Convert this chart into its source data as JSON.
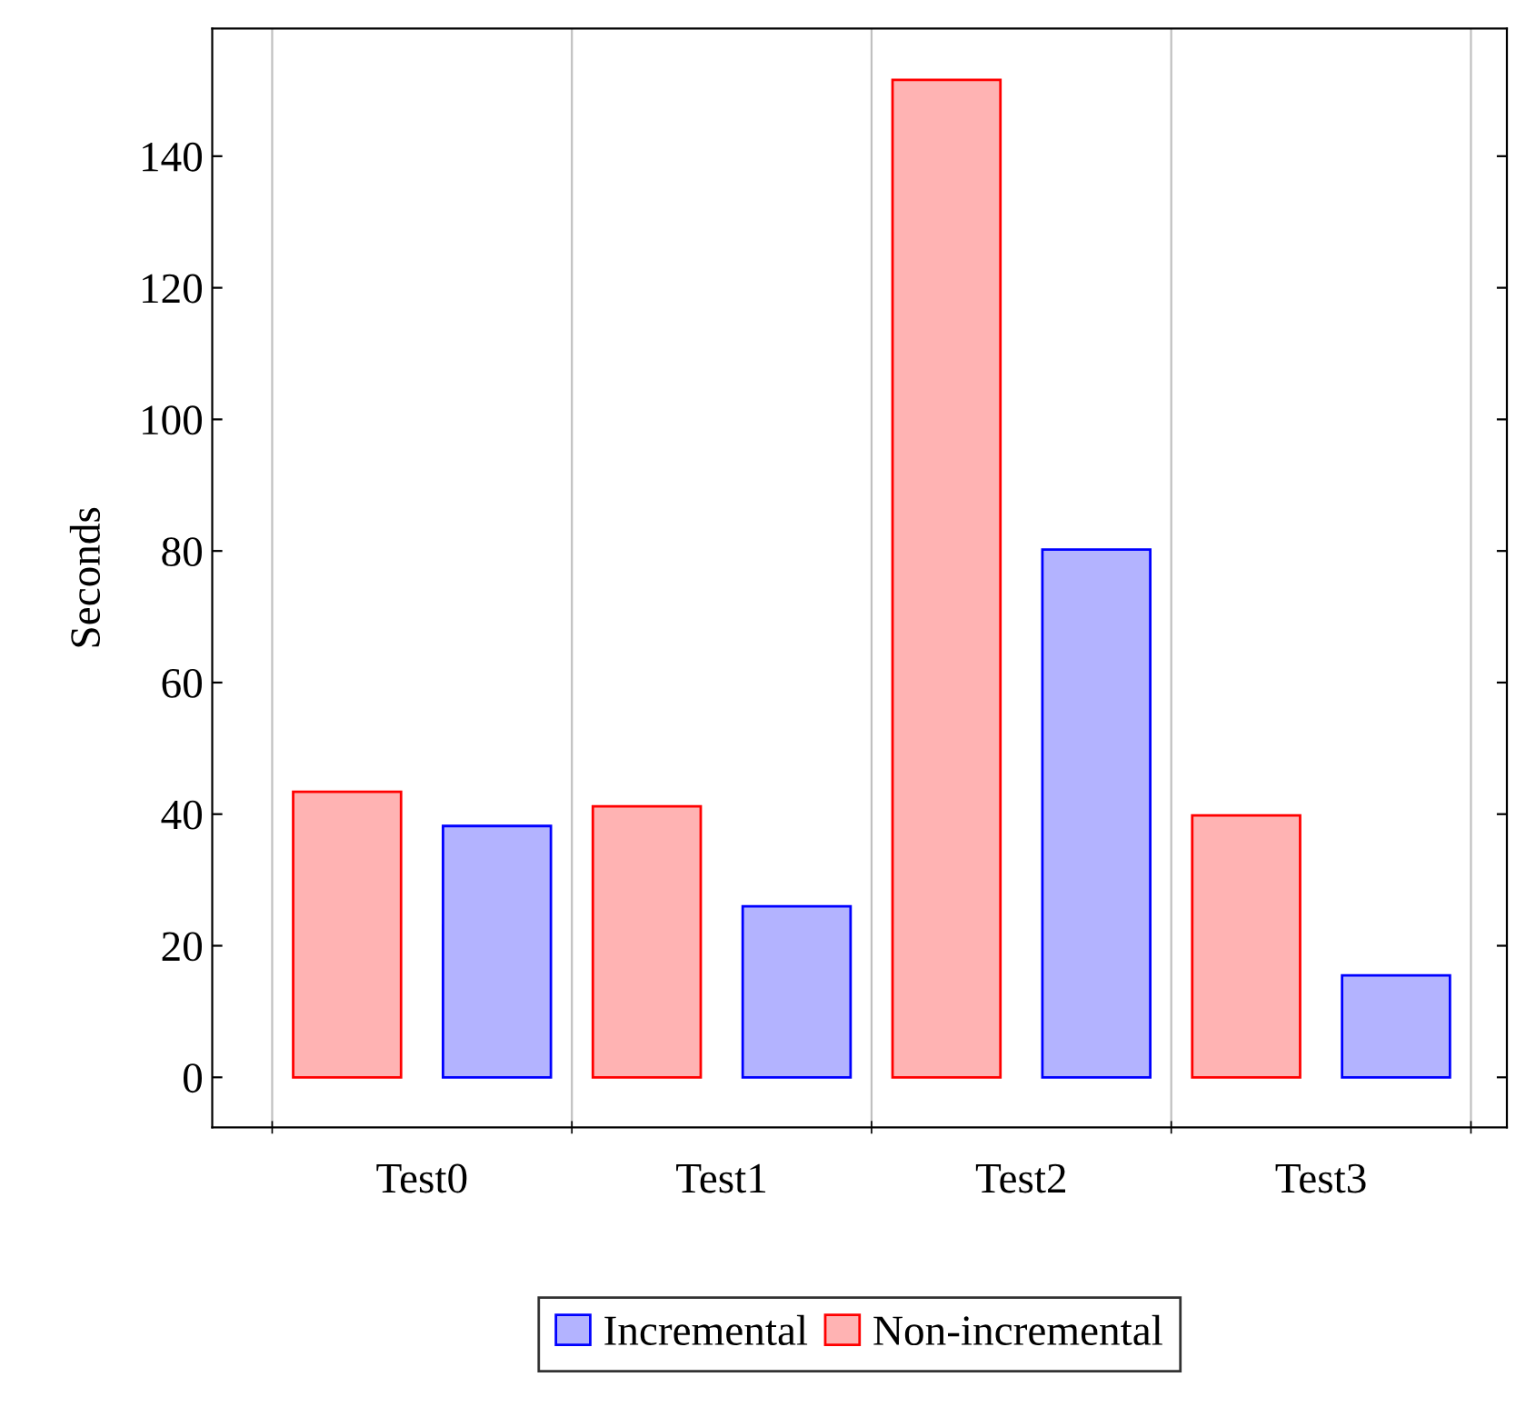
{
  "chart_data": {
    "type": "bar",
    "ylabel": "Seconds",
    "categories": [
      "Test0",
      "Test1",
      "Test2",
      "Test3"
    ],
    "series": [
      {
        "name": "Non-incremental",
        "color": "#ffb3b3",
        "values": [
          43.4,
          41.2,
          151.6,
          39.8
        ]
      },
      {
        "name": "Incremental",
        "color": "#b3b3ff",
        "values": [
          38.2,
          26.0,
          80.2,
          15.5
        ]
      }
    ],
    "ylim": [
      -7.6,
      159.4
    ],
    "yticks": [
      0,
      20,
      40,
      60,
      80,
      100,
      120,
      140
    ],
    "grid": "x",
    "legend": "bottom"
  }
}
